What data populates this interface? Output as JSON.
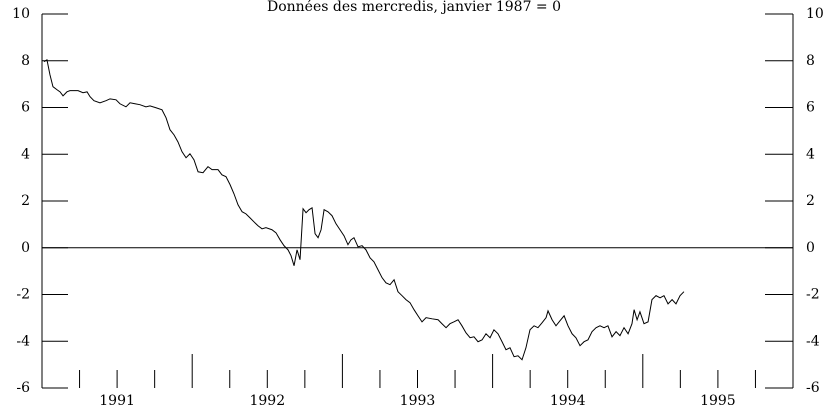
{
  "chart_data": {
    "type": "line",
    "title": "Données des mercredis, janvier 1987 = 0",
    "xlim": [
      1991,
      1996
    ],
    "xticks": [
      {
        "value": 1991.5,
        "label": "1991"
      },
      {
        "value": 1992.5,
        "label": "1992"
      },
      {
        "value": 1993.5,
        "label": "1993"
      },
      {
        "value": 1994.5,
        "label": "1994"
      },
      {
        "value": 1995.5,
        "label": "1995"
      }
    ],
    "x_major_ticks": [
      1992,
      1993,
      1994,
      1995
    ],
    "x_minor_ticks": [
      1991.25,
      1991.5,
      1991.75,
      1992.25,
      1992.5,
      1992.75,
      1993.25,
      1993.5,
      1993.75,
      1994.25,
      1994.5,
      1994.75,
      1995.25,
      1995.5,
      1995.75
    ],
    "ylim": [
      -6,
      10
    ],
    "yticks": [
      -6,
      -4,
      -2,
      0,
      2,
      4,
      6,
      8,
      10
    ],
    "y2lim": [
      -6,
      10
    ],
    "y2ticks": [
      -6,
      -4,
      -2,
      0,
      2,
      4,
      6,
      8,
      10
    ],
    "reference_line": 0,
    "series": [
      {
        "color": "#000000",
        "x": [
          1991.013,
          1991.033,
          1991.053,
          1991.073,
          1991.1,
          1991.12,
          1991.14,
          1991.166,
          1991.186,
          1991.24,
          1991.273,
          1991.3,
          1991.32,
          1991.346,
          1991.386,
          1991.426,
          1991.453,
          1991.493,
          1991.519,
          1991.559,
          1991.586,
          1991.619,
          1991.652,
          1991.692,
          1991.719,
          1991.759,
          1991.799,
          1991.826,
          1991.852,
          1991.879,
          1991.905,
          1991.932,
          1991.959,
          1991.985,
          1992.012,
          1992.039,
          1992.072,
          1992.105,
          1992.132,
          1992.172,
          1992.198,
          1992.225,
          1992.252,
          1992.278,
          1992.305,
          1992.332,
          1992.358,
          1992.385,
          1992.411,
          1992.438,
          1992.465,
          1992.491,
          1992.531,
          1992.558,
          1992.585,
          1992.611,
          1992.638,
          1992.658,
          1992.678,
          1992.698,
          1992.718,
          1992.738,
          1992.758,
          1992.778,
          1992.798,
          1992.818,
          1992.838,
          1992.858,
          1992.878,
          1992.904,
          1992.931,
          1992.957,
          1992.984,
          1993.011,
          1993.037,
          1993.057,
          1993.077,
          1993.104,
          1993.131,
          1993.157,
          1993.184,
          1993.21,
          1993.237,
          1993.264,
          1993.29,
          1993.317,
          1993.344,
          1993.37,
          1993.397,
          1993.423,
          1993.45,
          1993.477,
          1993.503,
          1993.53,
          1993.557,
          1993.597,
          1993.637,
          1993.663,
          1993.69,
          1993.716,
          1993.743,
          1993.77,
          1993.796,
          1993.823,
          1993.85,
          1993.876,
          1993.903,
          1993.93,
          1993.956,
          1993.983,
          1994.009,
          1994.036,
          1994.063,
          1994.089,
          1994.116,
          1994.143,
          1994.169,
          1994.196,
          1994.222,
          1994.249,
          1994.276,
          1994.302,
          1994.329,
          1994.356,
          1994.369,
          1994.396,
          1994.422,
          1994.449,
          1994.476,
          1994.502,
          1994.529,
          1994.555,
          1994.582,
          1994.609,
          1994.635,
          1994.662,
          1994.689,
          1994.715,
          1994.742,
          1994.768,
          1994.795,
          1994.822,
          1994.848,
          1994.875,
          1994.902,
          1994.928,
          1994.942,
          1994.962,
          1994.981,
          1995.008,
          1995.035,
          1995.061,
          1995.088,
          1995.115,
          1995.141,
          1995.168,
          1995.195,
          1995.221,
          1995.248,
          1995.274
        ],
        "values": [
          7.96,
          8.04,
          7.4,
          6.89,
          6.76,
          6.67,
          6.5,
          6.67,
          6.72,
          6.72,
          6.63,
          6.67,
          6.46,
          6.29,
          6.2,
          6.29,
          6.37,
          6.33,
          6.16,
          6.03,
          6.2,
          6.16,
          6.12,
          6.03,
          6.07,
          5.99,
          5.9,
          5.56,
          5.05,
          4.83,
          4.53,
          4.11,
          3.85,
          4.02,
          3.76,
          3.25,
          3.21,
          3.47,
          3.34,
          3.34,
          3.12,
          3.04,
          2.7,
          2.31,
          1.84,
          1.54,
          1.45,
          1.28,
          1.11,
          0.94,
          0.81,
          0.86,
          0.77,
          0.64,
          0.34,
          0.09,
          -0.09,
          -0.34,
          -0.77,
          -0.09,
          -0.51,
          1.67,
          1.5,
          1.63,
          1.71,
          0.6,
          0.43,
          0.77,
          1.63,
          1.54,
          1.37,
          1.03,
          0.77,
          0.51,
          0.13,
          0.34,
          0.43,
          0.04,
          0.09,
          -0.09,
          -0.43,
          -0.6,
          -0.94,
          -1.28,
          -1.5,
          -1.58,
          -1.37,
          -1.88,
          -2.05,
          -2.22,
          -2.35,
          -2.65,
          -2.91,
          -3.17,
          -2.99,
          -3.04,
          -3.08,
          -3.25,
          -3.42,
          -3.25,
          -3.17,
          -3.08,
          -3.34,
          -3.64,
          -3.85,
          -3.81,
          -4.02,
          -3.94,
          -3.68,
          -3.85,
          -3.51,
          -3.68,
          -4.02,
          -4.36,
          -4.28,
          -4.66,
          -4.62,
          -4.79,
          -4.28,
          -3.51,
          -3.34,
          -3.42,
          -3.21,
          -2.99,
          -2.7,
          -3.08,
          -3.34,
          -3.12,
          -2.91,
          -3.34,
          -3.68,
          -3.85,
          -4.19,
          -4.02,
          -3.94,
          -3.59,
          -3.42,
          -3.34,
          -3.42,
          -3.34,
          -3.81,
          -3.59,
          -3.76,
          -3.42,
          -3.68,
          -3.25,
          -2.65,
          -3.08,
          -2.74,
          -3.25,
          -3.17,
          -2.22,
          -2.05,
          -2.14,
          -2.05,
          -2.4,
          -2.22,
          -2.4,
          -2.05,
          -1.88
        ]
      }
    ]
  }
}
